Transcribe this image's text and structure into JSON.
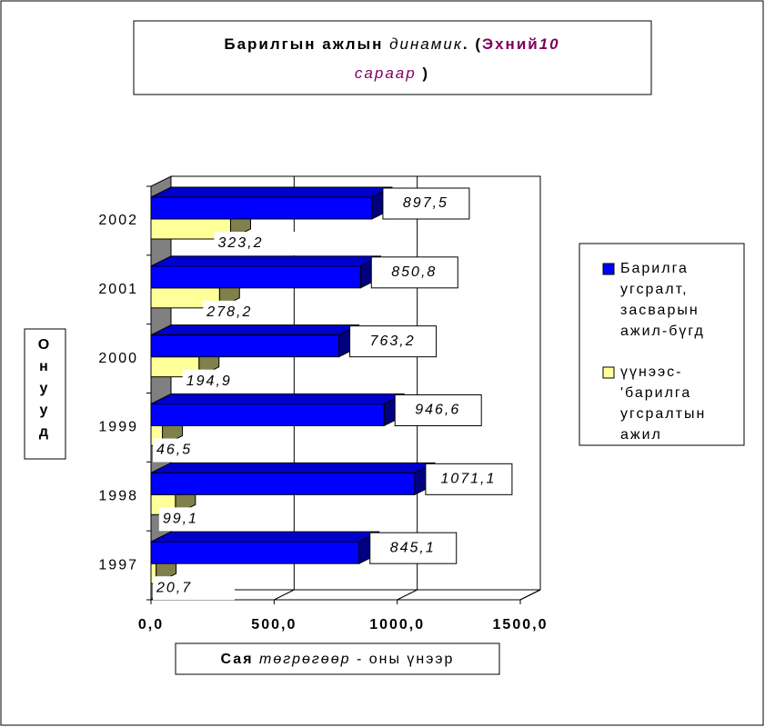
{
  "chart_data": {
    "type": "bar3d_horizontal",
    "title": [
      "Барилгын ажлын",
      "динамик",
      ". (",
      "Эхний",
      "10",
      "сараар",
      ")"
    ],
    "categories": [
      "1997",
      "1998",
      "1999",
      "2000",
      "2001",
      "2002"
    ],
    "series": [
      {
        "name": "Барилга угсралт, засварын ажил-бүгд",
        "color": "#0000ff",
        "values": [
          845.1,
          1071.1,
          946.6,
          763.2,
          850.8,
          897.5
        ],
        "value_labels": [
          "845,1",
          "1071,1",
          "946,6",
          "763,2",
          "850,8",
          "897,5"
        ]
      },
      {
        "name": "үүнээс-'барилга угсралтын ажил",
        "color": "#ffff99",
        "values": [
          20.7,
          99.1,
          46.5,
          194.9,
          278.2,
          323.2
        ],
        "value_labels": [
          "20,7",
          "99,1",
          "46,5",
          "194,9",
          "278,2",
          "323,2"
        ]
      }
    ],
    "xlim": [
      0,
      1500
    ],
    "xticks": [
      {
        "value": 0,
        "label": "0,0"
      },
      {
        "value": 500,
        "label": "500,0"
      },
      {
        "value": 1000,
        "label": "1000,0"
      },
      {
        "value": 1500,
        "label": "1500,0"
      }
    ],
    "y_label": "Онууд",
    "x_label": [
      "Сая",
      "төгрөгөөр",
      "- оны үнээр"
    ],
    "grid": true,
    "legend": "right"
  }
}
